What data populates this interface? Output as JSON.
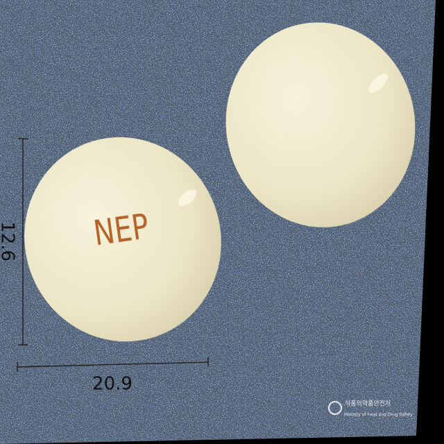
{
  "imprint": "NEP",
  "dimensions": {
    "height": "12.6",
    "width": "20.9",
    "unit": "mm"
  },
  "watermark": {
    "korean": "식품의약품안전처",
    "english": "Ministry of Food and Drug Safety"
  }
}
